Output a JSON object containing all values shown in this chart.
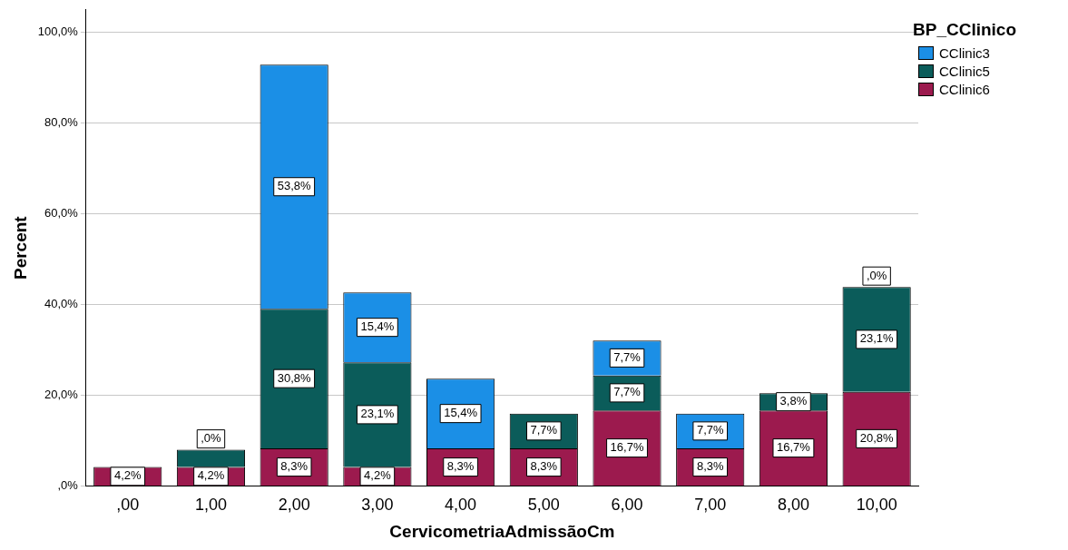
{
  "chart_data": {
    "type": "bar",
    "stacked": true,
    "xlabel": "CervicometriaAdmissãoCm",
    "ylabel": "Percent",
    "legend_title": "BP_CClinico",
    "legend": "top right",
    "grid": "y",
    "categories": [
      ",00",
      "1,00",
      "2,00",
      "3,00",
      "4,00",
      "5,00",
      "6,00",
      "7,00",
      "8,00",
      "10,00"
    ],
    "ylim": [
      0,
      105
    ],
    "yticks": [
      {
        "value": 0,
        "label": ",0%"
      },
      {
        "value": 20,
        "label": "20,0%"
      },
      {
        "value": 40,
        "label": "40,0%"
      },
      {
        "value": 60,
        "label": "60,0%"
      },
      {
        "value": 80,
        "label": "80,0%"
      },
      {
        "value": 100,
        "label": "100,0%"
      }
    ],
    "series": [
      {
        "name": "CClinic6",
        "color": "#9c1a4e",
        "values": [
          4.2,
          4.2,
          8.3,
          4.2,
          8.3,
          8.3,
          16.7,
          8.3,
          16.7,
          20.8
        ],
        "value_labels": [
          "4,2%",
          "4,2%",
          "8,3%",
          "4,2%",
          "8,3%",
          "8,3%",
          "16,7%",
          "8,3%",
          "16,7%",
          "20,8%"
        ]
      },
      {
        "name": "CClinic5",
        "color": "#0b5c5a",
        "values": [
          null,
          3.8,
          30.8,
          23.1,
          null,
          7.7,
          7.7,
          null,
          3.8,
          23.1
        ],
        "value_labels": [
          null,
          null,
          "30,8%",
          "23,1%",
          null,
          "7,7%",
          "7,7%",
          null,
          "3,8%",
          "23,1%"
        ]
      },
      {
        "name": "CClinic3",
        "color": "#1b8fe6",
        "values": [
          null,
          0,
          53.8,
          15.4,
          15.4,
          null,
          7.7,
          7.7,
          null,
          0
        ],
        "value_labels": [
          null,
          ",0%",
          "53,8%",
          "15,4%",
          "15,4%",
          null,
          "7,7%",
          "7,7%",
          null,
          ",0%"
        ]
      }
    ]
  }
}
